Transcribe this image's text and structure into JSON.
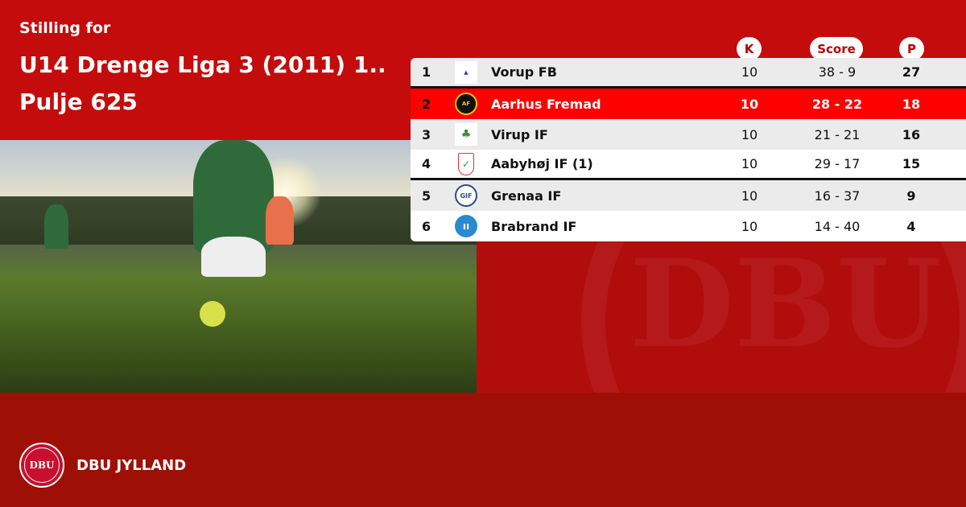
{
  "header": {
    "subtitle": "Stilling for",
    "title_line1": "U14 Drenge Liga 3 (2011) 1..",
    "title_line2": "Pulje 625"
  },
  "columns": {
    "k": "K",
    "score": "Score",
    "p": "P"
  },
  "standings": [
    {
      "pos": "1",
      "team": "Vorup FB",
      "k": "10",
      "score": "38 - 9",
      "p": "27",
      "crest": "vorup-fb-crest"
    },
    {
      "pos": "2",
      "team": "Aarhus Fremad",
      "k": "10",
      "score": "28 - 22",
      "p": "18",
      "crest": "aarhus-fremad-crest",
      "highlighted": true
    },
    {
      "pos": "3",
      "team": "Virup IF",
      "k": "10",
      "score": "21 - 21",
      "p": "16",
      "crest": "virup-if-crest"
    },
    {
      "pos": "4",
      "team": "Aabyhøj IF (1)",
      "k": "10",
      "score": "29 - 17",
      "p": "15",
      "crest": "aabyhoj-if-crest"
    },
    {
      "pos": "5",
      "team": "Grenaa IF",
      "k": "10",
      "score": "16 - 37",
      "p": "9",
      "crest": "grenaa-if-crest"
    },
    {
      "pos": "6",
      "team": "Brabrand IF",
      "k": "10",
      "score": "14 - 40",
      "p": "4",
      "crest": "brabrand-if-crest"
    }
  ],
  "footer": {
    "brand": "DBU JYLLAND",
    "logo_text": "DBU"
  },
  "colors": {
    "primary": "#c40c0c",
    "footer": "#9e0f06",
    "highlight": "#ff0000"
  }
}
